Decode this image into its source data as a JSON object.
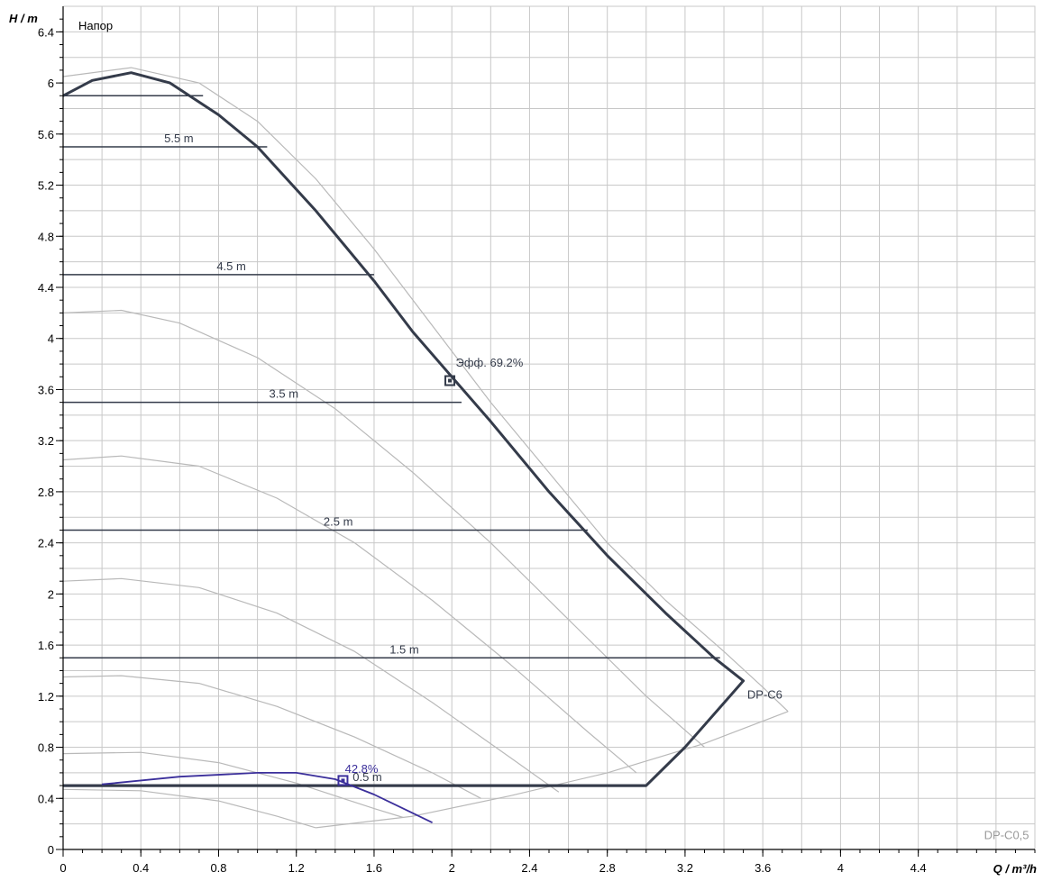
{
  "chart_data": {
    "type": "line",
    "title": "Напор",
    "xlabel": "Q / m³/h",
    "ylabel": "H / m",
    "xlim": [
      0,
      5
    ],
    "ylim": [
      0,
      6.6
    ],
    "x_ticks": [
      0,
      0.4,
      0.8,
      1.2,
      1.6,
      2,
      2.4,
      2.8,
      3.2,
      3.6,
      4,
      4.4
    ],
    "y_ticks": [
      0,
      0.4,
      0.8,
      1.2,
      1.6,
      2,
      2.4,
      2.8,
      3.2,
      3.6,
      4,
      4.4,
      4.8,
      5.2,
      5.6,
      6,
      6.4
    ],
    "x_tick_labels": [
      "0",
      "0.4",
      "0.8",
      "1.2",
      "1.6",
      "2",
      "2.4",
      "2.8",
      "3.2",
      "3.6",
      "4",
      "4.4"
    ],
    "y_tick_labels": [
      "0",
      "0.4",
      "0.8",
      "1.2",
      "1.6",
      "2",
      "2.4",
      "2.8",
      "3.2",
      "3.6",
      "4",
      "4.4",
      "4.8",
      "5.2",
      "5.6",
      "6",
      "6.4"
    ],
    "grid": true,
    "colors": {
      "main_curve": "#343b4a",
      "gray_curve": "#b9b9b9",
      "purple_curve": "#3b2f9b",
      "grid": "#c8c8c8",
      "axis": "#000000"
    },
    "series": [
      {
        "name": "DP-C6",
        "style": "main",
        "points": [
          [
            0,
            5.9
          ],
          [
            0.15,
            6.02
          ],
          [
            0.35,
            6.08
          ],
          [
            0.55,
            6.0
          ],
          [
            0.8,
            5.75
          ],
          [
            1.0,
            5.5
          ],
          [
            1.3,
            5.0
          ],
          [
            1.6,
            4.45
          ],
          [
            1.8,
            4.05
          ],
          [
            2.0,
            3.7
          ],
          [
            2.2,
            3.35
          ],
          [
            2.5,
            2.8
          ],
          [
            2.8,
            2.3
          ],
          [
            3.1,
            1.85
          ],
          [
            3.35,
            1.5
          ],
          [
            3.5,
            1.32
          ],
          [
            3.2,
            0.8
          ],
          [
            3.0,
            0.5
          ],
          [
            0,
            0.5
          ]
        ]
      },
      {
        "name": "DP-C0,5",
        "style": "purple",
        "points": [
          [
            0.2,
            0.51
          ],
          [
            0.6,
            0.57
          ],
          [
            1.0,
            0.6
          ],
          [
            1.2,
            0.6
          ],
          [
            1.4,
            0.55
          ],
          [
            1.6,
            0.43
          ],
          [
            1.75,
            0.32
          ],
          [
            1.9,
            0.21
          ]
        ]
      },
      {
        "style": "gray",
        "points": [
          [
            0,
            6.05
          ],
          [
            0.35,
            6.12
          ],
          [
            0.7,
            6.0
          ],
          [
            1.0,
            5.7
          ],
          [
            1.3,
            5.25
          ],
          [
            1.6,
            4.7
          ],
          [
            1.9,
            4.1
          ],
          [
            2.2,
            3.5
          ],
          [
            2.5,
            2.95
          ],
          [
            2.8,
            2.4
          ],
          [
            3.1,
            1.95
          ],
          [
            3.4,
            1.55
          ],
          [
            3.6,
            1.27
          ],
          [
            3.73,
            1.08
          ]
        ]
      },
      {
        "style": "gray",
        "points": [
          [
            0,
            4.2
          ],
          [
            0.3,
            4.22
          ],
          [
            0.6,
            4.12
          ],
          [
            1.0,
            3.85
          ],
          [
            1.4,
            3.45
          ],
          [
            1.8,
            2.95
          ],
          [
            2.2,
            2.4
          ],
          [
            2.6,
            1.8
          ],
          [
            3.0,
            1.2
          ],
          [
            3.3,
            0.8
          ]
        ]
      },
      {
        "style": "gray",
        "points": [
          [
            0,
            3.05
          ],
          [
            0.3,
            3.08
          ],
          [
            0.7,
            3.0
          ],
          [
            1.1,
            2.75
          ],
          [
            1.5,
            2.4
          ],
          [
            1.9,
            1.95
          ],
          [
            2.3,
            1.45
          ],
          [
            2.7,
            0.92
          ],
          [
            2.95,
            0.6
          ]
        ]
      },
      {
        "style": "gray",
        "points": [
          [
            0,
            2.1
          ],
          [
            0.3,
            2.12
          ],
          [
            0.7,
            2.05
          ],
          [
            1.1,
            1.85
          ],
          [
            1.5,
            1.55
          ],
          [
            1.9,
            1.15
          ],
          [
            2.3,
            0.72
          ],
          [
            2.55,
            0.45
          ]
        ]
      },
      {
        "style": "gray",
        "points": [
          [
            0,
            1.35
          ],
          [
            0.3,
            1.36
          ],
          [
            0.7,
            1.3
          ],
          [
            1.1,
            1.12
          ],
          [
            1.5,
            0.88
          ],
          [
            1.9,
            0.6
          ],
          [
            2.15,
            0.4
          ]
        ]
      },
      {
        "style": "gray",
        "points": [
          [
            0,
            0.75
          ],
          [
            0.4,
            0.76
          ],
          [
            0.8,
            0.68
          ],
          [
            1.2,
            0.52
          ],
          [
            1.6,
            0.32
          ],
          [
            1.75,
            0.25
          ]
        ]
      },
      {
        "style": "gray",
        "points": [
          [
            0,
            0.47
          ],
          [
            0.4,
            0.46
          ],
          [
            0.8,
            0.38
          ],
          [
            1.1,
            0.26
          ],
          [
            1.3,
            0.17
          ]
        ]
      },
      {
        "style": "gray",
        "points": [
          [
            1.3,
            0.17
          ],
          [
            1.8,
            0.26
          ],
          [
            2.3,
            0.42
          ],
          [
            2.8,
            0.6
          ],
          [
            3.3,
            0.83
          ],
          [
            3.73,
            1.08
          ]
        ]
      }
    ],
    "head_lines": [
      {
        "label": "5.5 m",
        "y": 5.5,
        "x_end": 1.05,
        "label_x": 0.52
      },
      {
        "label": "4.5 m",
        "y": 4.5,
        "x_end": 1.6,
        "label_x": 0.79
      },
      {
        "label": "3.5 m",
        "y": 3.5,
        "x_end": 2.05,
        "label_x": 1.06
      },
      {
        "label": "2.5 m",
        "y": 2.5,
        "x_end": 2.7,
        "label_x": 1.34
      },
      {
        "label": "1.5 m",
        "y": 1.5,
        "x_end": 3.38,
        "label_x": 1.68
      },
      {
        "label": "0.5 m",
        "y": 0.5,
        "x_end": 3.0,
        "label_x": 1.49
      }
    ],
    "annotations": [
      {
        "text": "Эфф.  69.2%",
        "x": 2.02,
        "y": 3.78,
        "color": "#343b4a"
      },
      {
        "text": "42.8%",
        "x": 1.45,
        "y": 0.6,
        "color": "#3b2f9b"
      },
      {
        "text": "DP-C6",
        "x": 3.52,
        "y": 1.18,
        "color": "#343b4a"
      },
      {
        "text": "DP-C0,5",
        "x": 4.97,
        "y": 0.08,
        "color": "#9a9a9a",
        "anchor": "end"
      }
    ],
    "markers": [
      {
        "x": 1.99,
        "y": 3.67,
        "color": "#343b4a"
      },
      {
        "x": 1.44,
        "y": 0.54,
        "color": "#3b2f9b"
      }
    ],
    "top_segment": {
      "y": 5.9,
      "x_end": 0.72
    }
  }
}
